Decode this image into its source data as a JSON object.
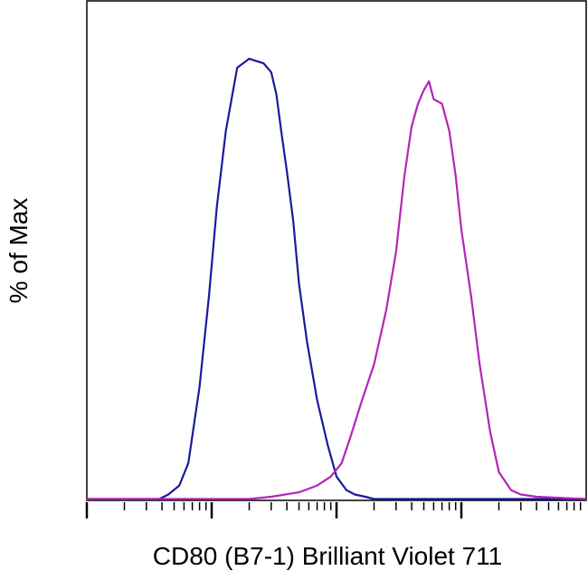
{
  "chart_data": {
    "type": "line",
    "title": "",
    "xlabel": "CD80 (B7-1) Brilliant Violet 711",
    "ylabel": "% of Max",
    "x_scale": "log",
    "x_range": [
      10,
      100000
    ],
    "ylim": [
      0,
      100
    ],
    "grid": false,
    "legend": "none",
    "series": [
      {
        "color": "#1a1a9e",
        "x": [
          10,
          20,
          38,
          45,
          55,
          65,
          80,
          95,
          110,
          130,
          160,
          200,
          260,
          300,
          330,
          360,
          400,
          450,
          500,
          580,
          700,
          850,
          1000,
          1200,
          1400,
          1700,
          2000,
          3000,
          5000,
          10000,
          100000
        ],
        "y": [
          0,
          0,
          0,
          1,
          3,
          8,
          25,
          45,
          65,
          82,
          96,
          98,
          97,
          95,
          90,
          82,
          73,
          62,
          48,
          35,
          22,
          12,
          5,
          2,
          1,
          0.5,
          0,
          0,
          0,
          0,
          0
        ]
      },
      {
        "color": "#b325b8",
        "x": [
          10,
          100,
          200,
          300,
          500,
          700,
          900,
          1100,
          1300,
          1600,
          2000,
          2500,
          3000,
          3500,
          4000,
          4500,
          5000,
          5500,
          6000,
          7000,
          8000,
          9000,
          10000,
          12000,
          14000,
          17000,
          20000,
          25000,
          30000,
          40000,
          100000
        ],
        "y": [
          0,
          0,
          0,
          0.5,
          1.5,
          3,
          5,
          8,
          14,
          22,
          30,
          42,
          55,
          72,
          83,
          88,
          91,
          93,
          89,
          88,
          82,
          72,
          60,
          45,
          30,
          15,
          6,
          2,
          1,
          0.5,
          0
        ]
      }
    ]
  }
}
